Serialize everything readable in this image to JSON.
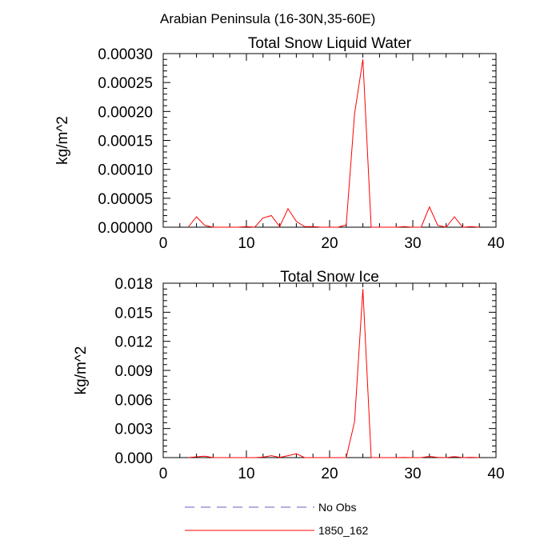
{
  "figure": {
    "title": "Arabian Peninsula (16-30N,35-60E)"
  },
  "chart_data": [
    {
      "type": "line",
      "title": "Total Snow Liquid Water",
      "xlabel": "",
      "ylabel": "kg/m^2",
      "xlim": [
        0,
        40
      ],
      "ylim": [
        0,
        0.0003
      ],
      "xticks": [
        "0",
        "10",
        "20",
        "30",
        "40"
      ],
      "yticks": [
        "0.00000",
        "0.00005",
        "0.00010",
        "0.00015",
        "0.00020",
        "0.00025",
        "0.00030"
      ],
      "grid": false,
      "series": [
        {
          "name": "1850_162",
          "color": "#ff0000",
          "x": [
            3,
            4,
            5,
            6,
            7,
            8,
            9,
            10,
            11,
            12,
            13,
            14,
            15,
            16,
            17,
            18,
            19,
            20,
            21,
            22,
            23,
            24,
            25,
            26,
            27,
            28,
            29,
            30,
            31,
            32,
            33,
            34,
            35,
            36,
            37,
            38
          ],
          "y": [
            0.0,
            1.8e-05,
            3e-06,
            0.0,
            0.0,
            0.0,
            0.0,
            1e-06,
            0.0,
            1.6e-05,
            2e-05,
            1e-06,
            3.2e-05,
            1e-05,
            1e-06,
            1e-06,
            0.0,
            0.0,
            0.0,
            4e-06,
            0.000196,
            0.00029,
            0.0,
            0.0,
            0.0,
            0.0,
            1e-06,
            0.0,
            0.0,
            3.5e-05,
            3e-06,
            0.0,
            1.8e-05,
            0.0,
            1e-06,
            0.0
          ]
        }
      ]
    },
    {
      "type": "line",
      "title": "Total Snow Ice",
      "xlabel": "",
      "ylabel": "kg/m^2",
      "xlim": [
        0,
        40
      ],
      "ylim": [
        0,
        0.018
      ],
      "xticks": [
        "0",
        "10",
        "20",
        "30",
        "40"
      ],
      "yticks": [
        "0.000",
        "0.003",
        "0.006",
        "0.009",
        "0.012",
        "0.015",
        "0.018"
      ],
      "grid": false,
      "series": [
        {
          "name": "1850_162",
          "color": "#ff0000",
          "x": [
            3,
            4,
            5,
            6,
            7,
            8,
            9,
            10,
            11,
            12,
            13,
            14,
            15,
            16,
            17,
            18,
            19,
            20,
            21,
            22,
            23,
            24,
            25,
            26,
            27,
            28,
            29,
            30,
            31,
            32,
            33,
            34,
            35,
            36,
            37,
            38
          ],
          "y": [
            0.0,
            8e-05,
            0.00015,
            0.0,
            0.0,
            0.0,
            0.0,
            0.0,
            0.0,
            5e-05,
            0.0002,
            2e-05,
            0.0002,
            0.0004,
            0.0,
            0.0,
            0.0,
            0.0,
            0.0,
            0.0,
            0.0037,
            0.0174,
            0.0,
            0.0,
            0.0,
            0.0,
            2e-05,
            0.0,
            0.0,
            0.00012,
            2e-05,
            0.0,
            0.0001,
            0.0,
            3e-05,
            0.0
          ]
        }
      ]
    }
  ],
  "legend": {
    "placement": "bottom",
    "entries": [
      {
        "label": "No Obs",
        "color": "#6a5acd",
        "style": "dashed"
      },
      {
        "label": "1850_162",
        "color": "#ff0000",
        "style": "solid"
      }
    ]
  }
}
